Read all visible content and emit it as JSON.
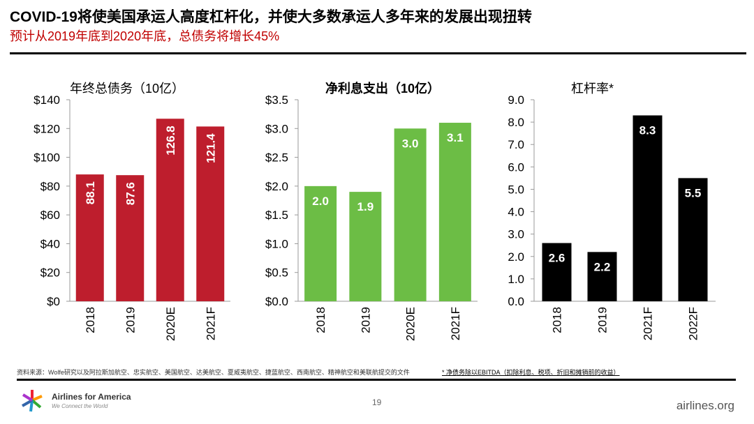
{
  "header": {
    "title": "COVID-19将使美国承运人高度杠杆化，并使大多数承运人多年来的发展出现扭转",
    "subtitle": "预计从2019年底到2020年底，总债务将增长45%"
  },
  "chart_data": [
    {
      "type": "bar",
      "title": "年终总债务（10亿）",
      "categories": [
        "2018",
        "2019",
        "2020E",
        "2021F"
      ],
      "values": [
        88.1,
        87.6,
        126.8,
        121.4
      ],
      "data_labels": [
        "88.1",
        "87.6",
        "126.8",
        "121.4"
      ],
      "ylim": [
        0,
        140
      ],
      "ticks": [
        "$0",
        "$20",
        "$40",
        "$60",
        "$80",
        "$100",
        "$120",
        "$140"
      ],
      "tick_values": [
        0,
        20,
        40,
        60,
        80,
        100,
        120,
        140
      ],
      "color": "#be1e2d",
      "label_rotation": "vertical",
      "grid": false
    },
    {
      "type": "bar",
      "title": "净利息支出（10亿）",
      "categories": [
        "2018",
        "2019",
        "2020E",
        "2021F"
      ],
      "values": [
        2.0,
        1.9,
        3.0,
        3.1
      ],
      "data_labels": [
        "2.0",
        "1.9",
        "3.0",
        "3.1"
      ],
      "ylim": [
        0,
        3.5
      ],
      "ticks": [
        "$0.0",
        "$0.5",
        "$1.0",
        "$1.5",
        "$2.0",
        "$2.5",
        "$3.0",
        "$3.5"
      ],
      "tick_values": [
        0,
        0.5,
        1,
        1.5,
        2,
        2.5,
        3,
        3.5
      ],
      "color": "#6cbd45",
      "label_rotation": "horizontal",
      "grid": false
    },
    {
      "type": "bar",
      "title": "杠杆率*",
      "categories": [
        "2018",
        "2019",
        "2021F",
        "2022F"
      ],
      "values": [
        2.6,
        2.2,
        8.3,
        5.5
      ],
      "data_labels": [
        "2.6",
        "2.2",
        "8.3",
        "5.5"
      ],
      "ylim": [
        0,
        9
      ],
      "ticks": [
        "0.0",
        "1.0",
        "2.0",
        "3.0",
        "4.0",
        "5.0",
        "6.0",
        "7.0",
        "8.0",
        "9.0"
      ],
      "tick_values": [
        0,
        1,
        2,
        3,
        4,
        5,
        6,
        7,
        8,
        9
      ],
      "color": "#000000",
      "label_rotation": "horizontal",
      "grid": false
    }
  ],
  "footer": {
    "source": "资料来源：Wolfe研究以及阿拉斯加航空、忠实航空、美国航空、达美航空、夏威夷航空、捷蓝航空、西南航空、精神航空和美联航提交的文件",
    "note": "* 净债务除以EBITDA（扣除利息、税项、折旧和摊销前的收益）",
    "page": "19",
    "logo": "Airlines for America",
    "logo_tagline": "We Connect the World",
    "site": "airlines.org"
  }
}
